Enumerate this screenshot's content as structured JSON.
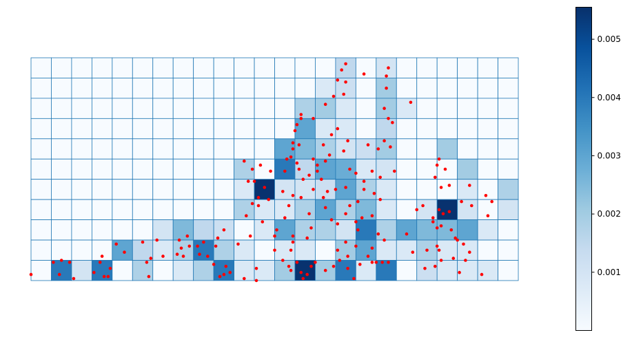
{
  "chart_data": {
    "type": "heatmap",
    "title": "",
    "xlabel": "",
    "ylabel": "",
    "grid": true,
    "axes_visible": false,
    "colormap": "Blues",
    "grid_line_color": "#1f77b4",
    "point_color": "#ff0000",
    "rows": 11,
    "cols": 24,
    "cells": [
      [
        0,
        0,
        0,
        0,
        0,
        0,
        0,
        0,
        0,
        0,
        0,
        0,
        0,
        0,
        0,
        0.0015,
        0,
        0.001,
        0,
        0,
        0,
        0,
        0,
        0
      ],
      [
        0,
        0,
        0,
        0,
        0,
        0,
        0,
        0,
        0,
        0,
        0,
        0,
        0,
        0,
        0.0008,
        0.0012,
        0,
        0.002,
        0,
        0,
        0,
        0,
        0,
        0
      ],
      [
        0,
        0,
        0,
        0,
        0,
        0,
        0,
        0,
        0,
        0,
        0,
        0,
        0,
        0.0018,
        0.002,
        0.0008,
        0,
        0.002,
        0.0008,
        0,
        0,
        0,
        0,
        0
      ],
      [
        0,
        0,
        0,
        0,
        0,
        0,
        0,
        0,
        0,
        0,
        0,
        0,
        0,
        0.003,
        0.0008,
        0.0008,
        0,
        0.0015,
        0,
        0,
        0,
        0,
        0,
        0
      ],
      [
        0,
        0,
        0,
        0,
        0,
        0,
        0,
        0,
        0,
        0,
        0,
        0,
        0.003,
        0.0025,
        0.0018,
        0.001,
        0.0012,
        0.002,
        0,
        0,
        0.002,
        0,
        0,
        0
      ],
      [
        0,
        0,
        0,
        0,
        0,
        0,
        0,
        0,
        0,
        0,
        0.0018,
        0,
        0.004,
        0.0015,
        0.003,
        0.0028,
        0.0008,
        0.001,
        0,
        0,
        0,
        0.002,
        0,
        0
      ],
      [
        0,
        0,
        0,
        0,
        0,
        0,
        0,
        0,
        0,
        0,
        0.0008,
        0.0055,
        0.001,
        0.001,
        0.0012,
        0.003,
        0.0018,
        0.0008,
        0,
        0,
        0,
        0.0008,
        0,
        0.0018
      ],
      [
        0,
        0,
        0,
        0,
        0,
        0,
        0,
        0,
        0,
        0,
        0.0018,
        0.0008,
        0.0008,
        0.0018,
        0.003,
        0.0018,
        0.0025,
        0.0008,
        0,
        0.001,
        0.0055,
        0.001,
        0,
        0.001
      ],
      [
        0,
        0,
        0,
        0,
        0,
        0,
        0.001,
        0.0025,
        0.0015,
        0.0012,
        0,
        0.0008,
        0.003,
        0.0018,
        0.0018,
        0.001,
        0.004,
        0.0018,
        0.003,
        0.0025,
        0.0025,
        0.003,
        0.0008,
        0
      ],
      [
        0,
        0,
        0,
        0,
        0.003,
        0.0015,
        0.0008,
        0.0018,
        0.004,
        0.0018,
        0.0008,
        0,
        0.0008,
        0.0008,
        0,
        0.002,
        0.003,
        0.0008,
        0.0008,
        0.0018,
        0.0008,
        0.0008,
        0,
        0
      ],
      [
        0,
        0.004,
        0.001,
        0.004,
        0,
        0.0018,
        0,
        0.0008,
        0.0018,
        0.004,
        0.0008,
        0.0008,
        0.002,
        0.0055,
        0.002,
        0.004,
        0.0008,
        0.004,
        0,
        0.0012,
        0.0008,
        0.0008,
        0.0008,
        0
      ]
    ],
    "colorbar": {
      "min": 0,
      "max": 0.00555,
      "ticks": [
        0.001,
        0.002,
        0.003,
        0.004,
        0.005
      ],
      "tick_labels": [
        "0.001",
        "0.002",
        "0.003",
        "0.004",
        "0.005"
      ]
    },
    "points": [
      [
        15.5,
        0.3
      ],
      [
        15.3,
        0.6
      ],
      [
        15.1,
        1.1
      ],
      [
        15.4,
        1.8
      ],
      [
        16.4,
        0.8
      ],
      [
        17.5,
        0.9
      ],
      [
        17.5,
        1.5
      ],
      [
        17.6,
        0.5
      ],
      [
        17.4,
        2.5
      ],
      [
        17.6,
        3.0
      ],
      [
        18.7,
        2.2
      ],
      [
        17.8,
        3.2
      ],
      [
        17.7,
        4.4
      ],
      [
        17.1,
        4.5
      ],
      [
        17.4,
        4.1
      ],
      [
        16.6,
        4.3
      ],
      [
        15.6,
        4.1
      ],
      [
        15.4,
        4.6
      ],
      [
        15.1,
        3.5
      ],
      [
        14.8,
        3.8
      ],
      [
        13.3,
        2.8
      ],
      [
        13.3,
        3.0
      ],
      [
        13.1,
        3.3
      ],
      [
        13.0,
        3.6
      ],
      [
        12.9,
        4.2
      ],
      [
        12.8,
        4.9
      ],
      [
        13.1,
        5.2
      ],
      [
        12.6,
        5.0
      ],
      [
        12.9,
        4.5
      ],
      [
        13.2,
        4.3
      ],
      [
        14.4,
        4.3
      ],
      [
        14.5,
        5.1
      ],
      [
        14.7,
        4.8
      ],
      [
        14.1,
        5.3
      ],
      [
        13.9,
        3.0
      ],
      [
        14.5,
        2.3
      ],
      [
        14.9,
        1.9
      ],
      [
        15.5,
        1.2
      ],
      [
        13.2,
        5.5
      ],
      [
        12.5,
        5.6
      ],
      [
        11.8,
        5.6
      ],
      [
        11.3,
        5.3
      ],
      [
        11.0,
        6.1
      ],
      [
        11.5,
        6.4
      ],
      [
        11.2,
        6.9
      ],
      [
        11.2,
        7.3
      ],
      [
        11.7,
        7.0
      ],
      [
        10.7,
        6.1
      ],
      [
        10.5,
        5.1
      ],
      [
        10.9,
        5.5
      ],
      [
        12.4,
        6.6
      ],
      [
        13.4,
        6.0
      ],
      [
        13.9,
        6.5
      ],
      [
        14.3,
        6.0
      ],
      [
        14.6,
        6.6
      ],
      [
        14.4,
        6.9
      ],
      [
        15.0,
        6.5
      ],
      [
        15.5,
        6.4
      ],
      [
        15.7,
        5.5
      ],
      [
        16.0,
        5.7
      ],
      [
        16.4,
        6.5
      ],
      [
        16.4,
        6.1
      ],
      [
        16.8,
        5.6
      ],
      [
        17.2,
        5.9
      ],
      [
        17.9,
        5.6
      ],
      [
        16.9,
        6.7
      ],
      [
        17.2,
        7.0
      ],
      [
        16.1,
        7.1
      ],
      [
        15.5,
        7.7
      ],
      [
        15.7,
        7.3
      ],
      [
        16.8,
        7.8
      ],
      [
        16.3,
        7.9
      ],
      [
        16.0,
        8.1
      ],
      [
        15.1,
        8.2
      ],
      [
        14.5,
        7.4
      ],
      [
        14.8,
        8.0
      ],
      [
        13.7,
        7.7
      ],
      [
        13.8,
        8.4
      ],
      [
        13.6,
        8.9
      ],
      [
        12.9,
        8.8
      ],
      [
        12.9,
        9.1
      ],
      [
        12.8,
        9.5
      ],
      [
        12.1,
        8.5
      ],
      [
        12.0,
        8.8
      ],
      [
        12.5,
        7.9
      ],
      [
        12.7,
        7.3
      ],
      [
        12.9,
        6.8
      ],
      [
        13.3,
        6.9
      ],
      [
        13.7,
        5.8
      ],
      [
        14.1,
        5.6
      ],
      [
        13.9,
        5.0
      ],
      [
        11.4,
        8.1
      ],
      [
        10.9,
        7.2
      ],
      [
        10.6,
        7.8
      ],
      [
        10.8,
        8.8
      ],
      [
        10.2,
        9.2
      ],
      [
        9.5,
        8.5
      ],
      [
        9.2,
        8.9
      ],
      [
        9.1,
        9.3
      ],
      [
        8.7,
        9.8
      ],
      [
        8.5,
        9.1
      ],
      [
        8.2,
        9.3
      ],
      [
        7.8,
        9.3
      ],
      [
        7.4,
        9.4
      ],
      [
        7.7,
        8.8
      ],
      [
        7.3,
        9.0
      ],
      [
        6.2,
        9.0
      ],
      [
        5.9,
        9.9
      ],
      [
        5.5,
        9.1
      ],
      [
        4.6,
        9.6
      ],
      [
        4.2,
        9.2
      ],
      [
        3.5,
        9.8
      ],
      [
        3.4,
        10.1
      ],
      [
        3.6,
        10.8
      ],
      [
        3.1,
        10.6
      ],
      [
        2.1,
        10.9
      ],
      [
        1.9,
        10.1
      ],
      [
        1.4,
        10.7
      ],
      [
        1.1,
        10.1
      ],
      [
        1.5,
        10.0
      ],
      [
        0.0,
        10.7
      ],
      [
        3.8,
        10.8
      ],
      [
        3.9,
        10.4
      ],
      [
        5.7,
        10.1
      ],
      [
        5.8,
        10.8
      ],
      [
        6.5,
        9.8
      ],
      [
        7.2,
        9.7
      ],
      [
        7.5,
        9.8
      ],
      [
        8.3,
        9.7
      ],
      [
        9.0,
        10.2
      ],
      [
        9.6,
        10.3
      ],
      [
        9.5,
        10.7
      ],
      [
        9.3,
        10.8
      ],
      [
        9.8,
        10.6
      ],
      [
        10.5,
        10.9
      ],
      [
        11.1,
        10.4
      ],
      [
        11.1,
        11.0
      ],
      [
        12.0,
        9.5
      ],
      [
        12.4,
        10.0
      ],
      [
        12.7,
        10.3
      ],
      [
        12.8,
        10.5
      ],
      [
        13.1,
        10.1
      ],
      [
        13.3,
        10.6
      ],
      [
        13.4,
        10.9
      ],
      [
        13.6,
        10.7
      ],
      [
        13.8,
        10.3
      ],
      [
        14.0,
        10.1
      ],
      [
        14.5,
        10.5
      ],
      [
        14.9,
        10.3
      ],
      [
        15.2,
        10.0
      ],
      [
        15.6,
        10.4
      ],
      [
        15.9,
        10.9
      ],
      [
        16.2,
        10.2
      ],
      [
        16.6,
        9.8
      ],
      [
        16.8,
        10.1
      ],
      [
        17.0,
        10.1
      ],
      [
        17.3,
        10.1
      ],
      [
        17.6,
        10.1
      ],
      [
        16.0,
        9.3
      ],
      [
        15.5,
        9.1
      ],
      [
        15.1,
        9.5
      ],
      [
        15.6,
        9.8
      ],
      [
        16.8,
        9.4
      ],
      [
        16.1,
        8.5
      ],
      [
        17.1,
        8.7
      ],
      [
        17.4,
        9.0
      ],
      [
        18.5,
        8.7
      ],
      [
        18.8,
        9.6
      ],
      [
        19.5,
        9.5
      ],
      [
        20.1,
        9.5
      ],
      [
        19.4,
        10.4
      ],
      [
        19.9,
        10.3
      ],
      [
        20.2,
        10.0
      ],
      [
        20.8,
        9.9
      ],
      [
        21.4,
        10.0
      ],
      [
        21.1,
        10.6
      ],
      [
        22.2,
        10.7
      ],
      [
        19.8,
        8.1
      ],
      [
        20.0,
        8.4
      ],
      [
        20.2,
        8.3
      ],
      [
        20.7,
        8.5
      ],
      [
        20.9,
        8.9
      ],
      [
        21.3,
        9.2
      ],
      [
        21.6,
        9.6
      ],
      [
        21.0,
        9.0
      ],
      [
        20.0,
        9.3
      ],
      [
        20.3,
        7.7
      ],
      [
        20.6,
        7.6
      ],
      [
        20.1,
        7.5
      ],
      [
        19.8,
        7.9
      ],
      [
        19.3,
        7.3
      ],
      [
        19.0,
        7.5
      ],
      [
        21.2,
        7.1
      ],
      [
        21.7,
        7.3
      ],
      [
        22.5,
        7.8
      ],
      [
        22.4,
        6.8
      ],
      [
        22.7,
        7.1
      ],
      [
        21.6,
        6.3
      ],
      [
        20.6,
        6.3
      ],
      [
        20.2,
        6.4
      ],
      [
        19.9,
        5.9
      ],
      [
        20.0,
        5.3
      ],
      [
        20.1,
        5.0
      ],
      [
        20.4,
        5.5
      ]
    ]
  }
}
